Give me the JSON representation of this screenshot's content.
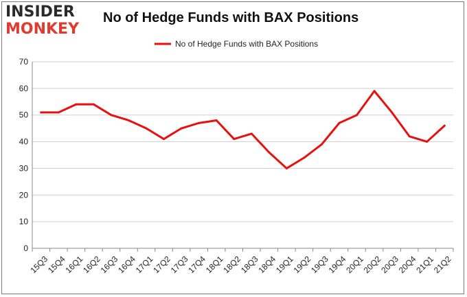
{
  "logo": {
    "line1": "INSIDER",
    "line2": "MONKEY"
  },
  "chart_data": {
    "type": "line",
    "title": "No of Hedge Funds with BAX Positions",
    "xlabel": "",
    "ylabel": "",
    "ylim": [
      0,
      70
    ],
    "yticks": [
      0,
      10,
      20,
      30,
      40,
      50,
      60,
      70
    ],
    "grid": true,
    "legend_position": "top-center",
    "categories": [
      "15Q3",
      "15Q4",
      "16Q1",
      "16Q2",
      "16Q3",
      "16Q4",
      "17Q1",
      "17Q2",
      "17Q3",
      "17Q4",
      "18Q1",
      "18Q2",
      "18Q3",
      "18Q4",
      "19Q1",
      "19Q2",
      "19Q3",
      "19Q4",
      "20Q1",
      "20Q2",
      "20Q3",
      "20Q4",
      "21Q1",
      "21Q2"
    ],
    "series": [
      {
        "name": "No of Hedge Funds with BAX Positions",
        "color": "#e8100f",
        "values": [
          51,
          51,
          54,
          54,
          50,
          48,
          45,
          41,
          45,
          47,
          48,
          41,
          43,
          36,
          30,
          34,
          39,
          47,
          50,
          59,
          51,
          42,
          40,
          46
        ]
      }
    ]
  }
}
